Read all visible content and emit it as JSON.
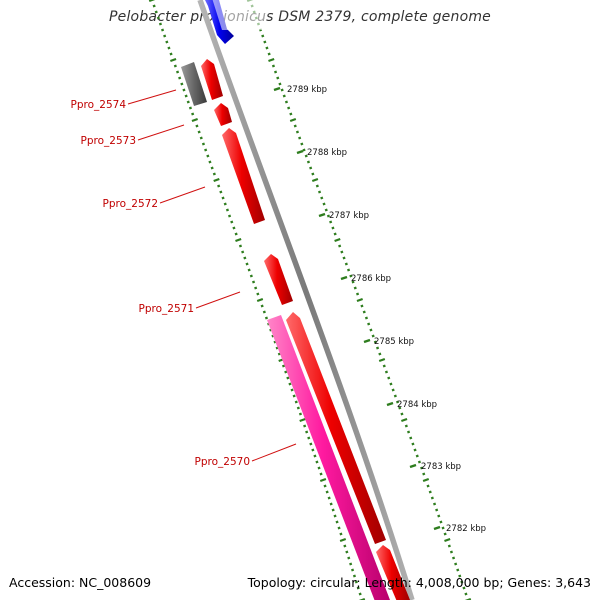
{
  "title": "Pelobacter propionicus DSM 2379, complete genome",
  "footer": {
    "accession": "Accession: NC_008609",
    "summary": "Topology: circular; Length: 4,008,000 bp; Genes: 3,643"
  },
  "colors": {
    "backbone": "#8a8a8a",
    "tick": "#2e7d1e",
    "label_line": "#d01010",
    "label_text": "#c00000",
    "gene_red": "#ee0000",
    "gene_pink": "#ff1aa0",
    "gene_gray": "#666666",
    "gene_blue": "#0000ee"
  },
  "scale_labels": [
    "2789 kbp",
    "2788 kbp",
    "2787 kbp",
    "2786 kbp",
    "2785 kbp",
    "2784 kbp",
    "2783 kbp",
    "2782 kbp"
  ],
  "gene_labels": [
    "Ppro_2574",
    "Ppro_2573",
    "Ppro_2572",
    "Ppro_2571",
    "Ppro_2570"
  ]
}
